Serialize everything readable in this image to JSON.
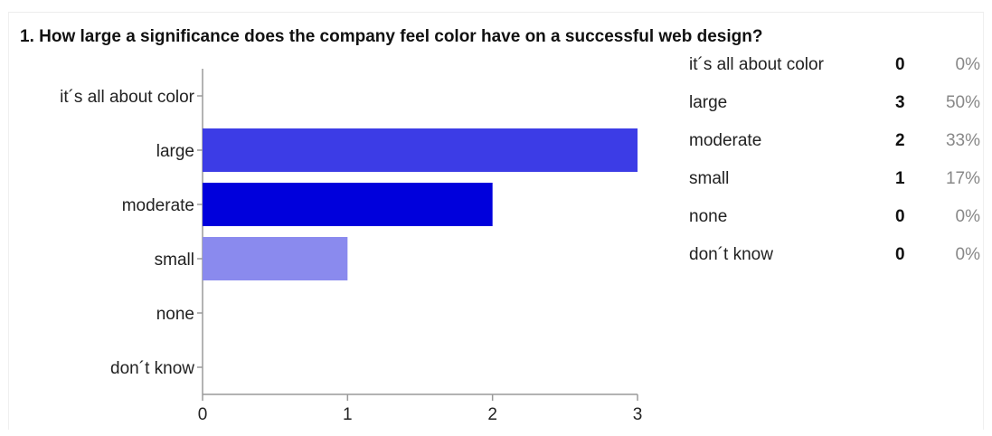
{
  "title": "1. How large a significance does the company feel color have on a successful web design?",
  "chart_data": {
    "type": "bar",
    "orientation": "horizontal",
    "title": "1. How large a significance does the company feel color have on a successful web design?",
    "categories": [
      "it´s all about color",
      "large",
      "moderate",
      "small",
      "none",
      "don´t know"
    ],
    "values": [
      0,
      3,
      2,
      1,
      0,
      0
    ],
    "bar_colors": [
      "#3c3ce6",
      "#3c3ce6",
      "#0000dc",
      "#8a8aee",
      "#3c3ce6",
      "#3c3ce6"
    ],
    "xlim": [
      0,
      3
    ],
    "x_ticks": [
      "0",
      "1",
      "2",
      "3"
    ],
    "xlabel": "",
    "ylabel": "",
    "grid": false
  },
  "summary": [
    {
      "label": "it´s all about color",
      "count": "0",
      "percent": "0%"
    },
    {
      "label": "large",
      "count": "3",
      "percent": "50%"
    },
    {
      "label": "moderate",
      "count": "2",
      "percent": "33%"
    },
    {
      "label": "small",
      "count": "1",
      "percent": "17%"
    },
    {
      "label": "none",
      "count": "0",
      "percent": "0%"
    },
    {
      "label": "don´t know",
      "count": "0",
      "percent": "0%"
    }
  ]
}
